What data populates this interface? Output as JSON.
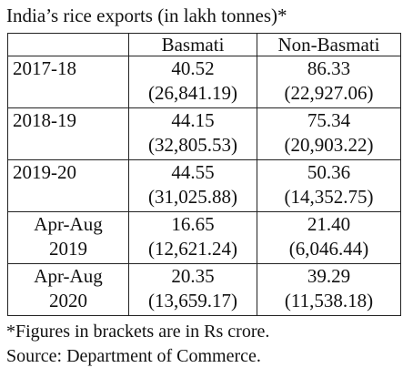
{
  "title": "India’s rice exports (in lakh tonnes)*",
  "headers": [
    "",
    "Basmati",
    "Non-Basmati"
  ],
  "rows": [
    {
      "year": [
        "2017-18"
      ],
      "basmati": [
        "40.52",
        "(26,841.19)"
      ],
      "non_basmati": [
        "86.33",
        "(22,927.06)"
      ]
    },
    {
      "year": [
        "2018-19"
      ],
      "basmati": [
        "44.15",
        "(32,805.53)"
      ],
      "non_basmati": [
        "75.34",
        "(20,903.22)"
      ]
    },
    {
      "year": [
        "2019-20"
      ],
      "basmati": [
        "44.55",
        "(31,025.88)"
      ],
      "non_basmati": [
        "50.36",
        "(14,352.75)"
      ]
    },
    {
      "year": [
        "Apr-Aug",
        "2019"
      ],
      "basmati": [
        "16.65",
        "(12,621.24)"
      ],
      "non_basmati": [
        "21.40",
        "(6,046.44)"
      ]
    },
    {
      "year": [
        "Apr-Aug",
        "2020"
      ],
      "basmati": [
        "20.35",
        "(13,659.17)"
      ],
      "non_basmati": [
        "39.29",
        "(11,538.18)"
      ]
    }
  ],
  "footnotes": [
    "*Figures in brackets are in Rs crore.",
    "Source: Department of Commerce."
  ]
}
